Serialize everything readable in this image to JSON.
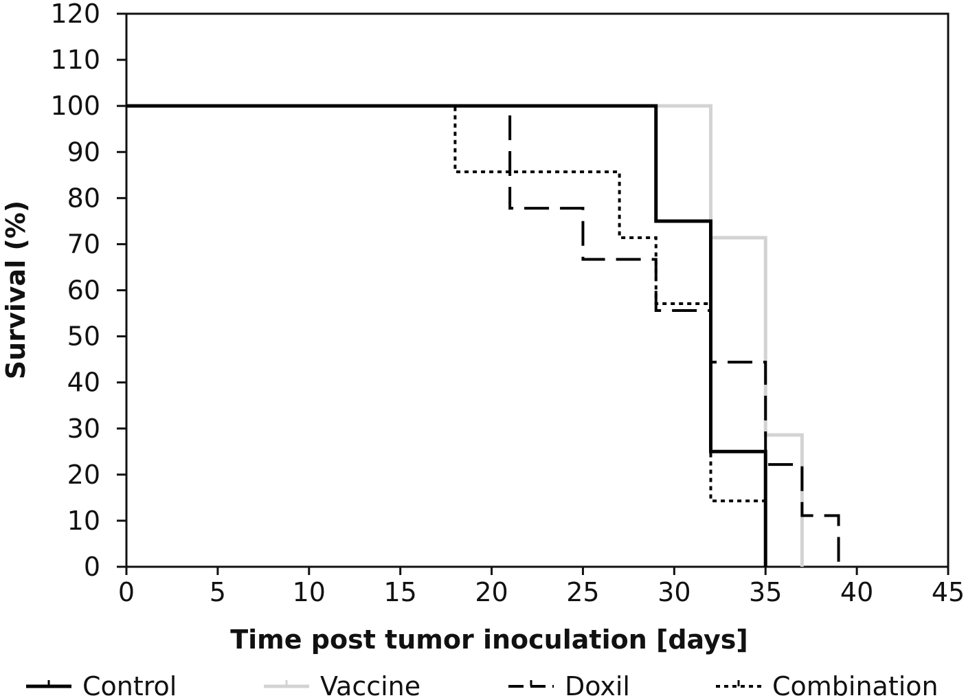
{
  "chart_data": {
    "type": "line",
    "step": true,
    "title": "",
    "xlabel": "Time post tumor inoculation [days]",
    "ylabel": "Survival (%)",
    "xlim": [
      0,
      45
    ],
    "ylim": [
      0,
      120
    ],
    "xticks": [
      0,
      5,
      10,
      15,
      20,
      25,
      30,
      35,
      40,
      45
    ],
    "yticks": [
      0,
      10,
      20,
      30,
      40,
      50,
      60,
      70,
      80,
      90,
      100,
      110,
      120
    ],
    "grid": false,
    "legend_position": "bottom",
    "series": [
      {
        "name": "Control",
        "style": "solid",
        "color": "#000000",
        "x": [
          0,
          29,
          32,
          35
        ],
        "y": [
          100,
          75,
          25,
          0
        ]
      },
      {
        "name": "Vaccine",
        "style": "solid",
        "color": "#d3d3d3",
        "x": [
          0,
          32,
          35,
          37
        ],
        "y": [
          100,
          71.4,
          28.6,
          0
        ]
      },
      {
        "name": "Doxil",
        "style": "dashed",
        "color": "#000000",
        "x": [
          0,
          21,
          25,
          29,
          32,
          35,
          37,
          39
        ],
        "y": [
          100,
          77.8,
          66.7,
          55.6,
          44.4,
          22.2,
          11.1,
          0
        ]
      },
      {
        "name": "Combination",
        "style": "dotted",
        "color": "#000000",
        "x": [
          0,
          18,
          27,
          29,
          32,
          35
        ],
        "y": [
          100,
          85.7,
          71.4,
          57.1,
          14.3,
          0
        ]
      }
    ]
  }
}
